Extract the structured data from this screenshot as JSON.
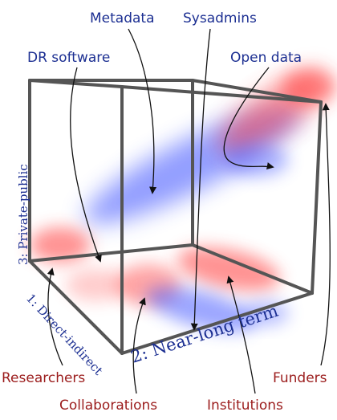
{
  "labels": {
    "metadata": "Metadata",
    "sysadmins": "Sysadmins",
    "dr_software": "DR software",
    "open_data": "Open data",
    "researchers": "Researchers",
    "collaborations": "Collaborations",
    "institutions": "Institutions",
    "funders": "Funders"
  },
  "axes": {
    "axis1": "1: Direct-indirect",
    "axis2": "2: Near-long term",
    "axis3": "3: Private-public"
  },
  "colors": {
    "blue_text": "#1c2f92",
    "red_text": "#9b1c1c",
    "blob_blue": "#3a4fff",
    "blob_red": "#ff3a3a",
    "cube_frame": "#555555"
  }
}
